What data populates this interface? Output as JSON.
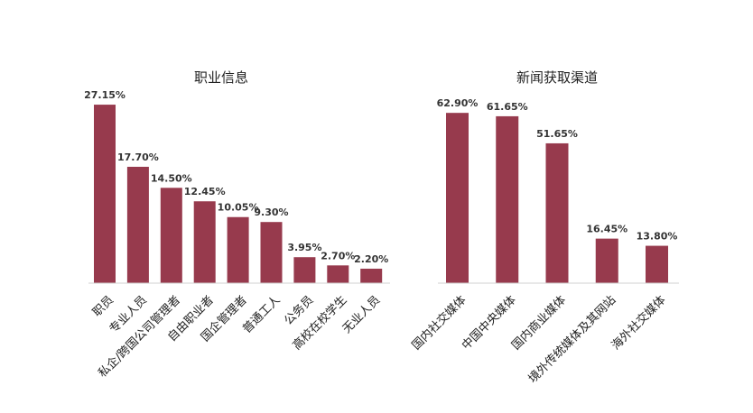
{
  "chart_data": [
    {
      "type": "bar",
      "title": "职业信息",
      "categories": [
        "职员",
        "专业人员",
        "私企/跨国公司管理者",
        "自由职业者",
        "国企管理者",
        "普通工人",
        "公务员",
        "高校在校学生",
        "无业人员"
      ],
      "values": [
        27.15,
        17.7,
        14.5,
        12.45,
        10.05,
        9.3,
        3.95,
        2.7,
        2.2
      ],
      "value_labels": [
        "27.15%",
        "17.70%",
        "14.50%",
        "12.45%",
        "10.05%",
        "9.30%",
        "3.95%",
        "2.70%",
        "2.20%"
      ],
      "xlabel": "",
      "ylabel": "",
      "ylim": [
        0,
        30
      ],
      "grid": false,
      "bar_color": "#973A4D"
    },
    {
      "type": "bar",
      "title": "新闻获取渠道",
      "categories": [
        "国内社交媒体",
        "中国中央媒体",
        "国内商业媒体",
        "境外传统媒体及其网站",
        "海外社交媒体"
      ],
      "values": [
        62.9,
        61.65,
        51.65,
        16.45,
        13.8
      ],
      "value_labels": [
        "62.90%",
        "61.65%",
        "51.65%",
        "16.45%",
        "13.80%"
      ],
      "xlabel": "",
      "ylabel": "",
      "ylim": [
        0,
        70
      ],
      "grid": false,
      "bar_color": "#973A4D"
    }
  ]
}
